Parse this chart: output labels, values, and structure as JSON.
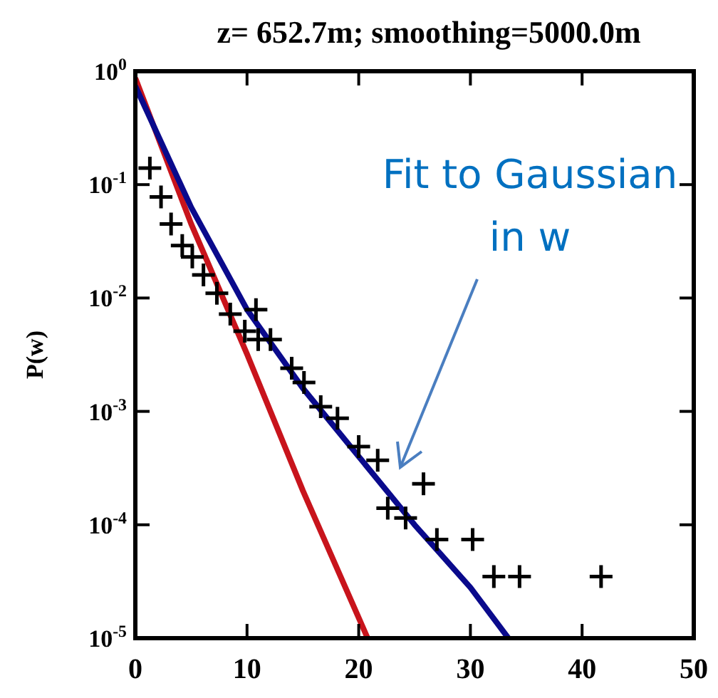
{
  "chart_data": {
    "type": "scatter",
    "title": "z= 652.7m; smoothing=5000.0m",
    "ylabel": "P(w)",
    "log": "y",
    "grid": false,
    "xlim": [
      0,
      50
    ],
    "xticks": [
      0,
      10,
      20,
      30,
      40,
      50
    ],
    "ylim": [
      1e-05,
      1
    ],
    "yticks": [
      {
        "value": 1,
        "label": "10$^{0}$"
      },
      {
        "value": 0.1,
        "label": "10$^{-1}$"
      },
      {
        "value": 0.01,
        "label": "10$^{-2}$"
      },
      {
        "value": 0.001,
        "label": "10$^{-3}$"
      },
      {
        "value": 0.0001,
        "label": "10$^{-4}$"
      },
      {
        "value": 1e-05,
        "label": "10$^{-5}$"
      }
    ],
    "annotations": [
      "Fit to Gaussian\nin w"
    ],
    "series": [
      {
        "type": "line",
        "color": "#c8141c",
        "x": [
          0,
          5,
          10,
          15,
          20.8
        ],
        "values": [
          0.87,
          0.045,
          0.0032,
          0.0002,
          1e-05
        ]
      },
      {
        "type": "line",
        "color": "#0a0a8c",
        "x": [
          0,
          5,
          10,
          15,
          20,
          25,
          30,
          33.4
        ],
        "values": [
          0.74,
          0.063,
          0.0079,
          0.0016,
          0.0004,
          0.0001,
          2.8e-05,
          1e-05
        ]
      },
      {
        "color": "#000000",
        "marker": "cross",
        "x": [
          1.3,
          2.3,
          3.2,
          4.2,
          5.1,
          6.1,
          7.3,
          8.5,
          9.8,
          11,
          10.8,
          12.1,
          14,
          15.1,
          16.6,
          18.1,
          20,
          21.7,
          25.8,
          22.6,
          24.2,
          27,
          30.2,
          32.1,
          34.4,
          41.7
        ],
        "values": [
          0.14,
          0.078,
          0.045,
          0.029,
          0.023,
          0.016,
          0.011,
          0.0072,
          0.0051,
          0.0043,
          0.0079,
          0.0043,
          0.0024,
          0.0018,
          0.0011,
          0.00087,
          0.00049,
          0.00037,
          0.00023,
          0.00014,
          0.000115,
          7.4e-05,
          7.4e-05,
          3.5e-05,
          3.5e-05,
          3.5e-05
        ]
      }
    ]
  }
}
